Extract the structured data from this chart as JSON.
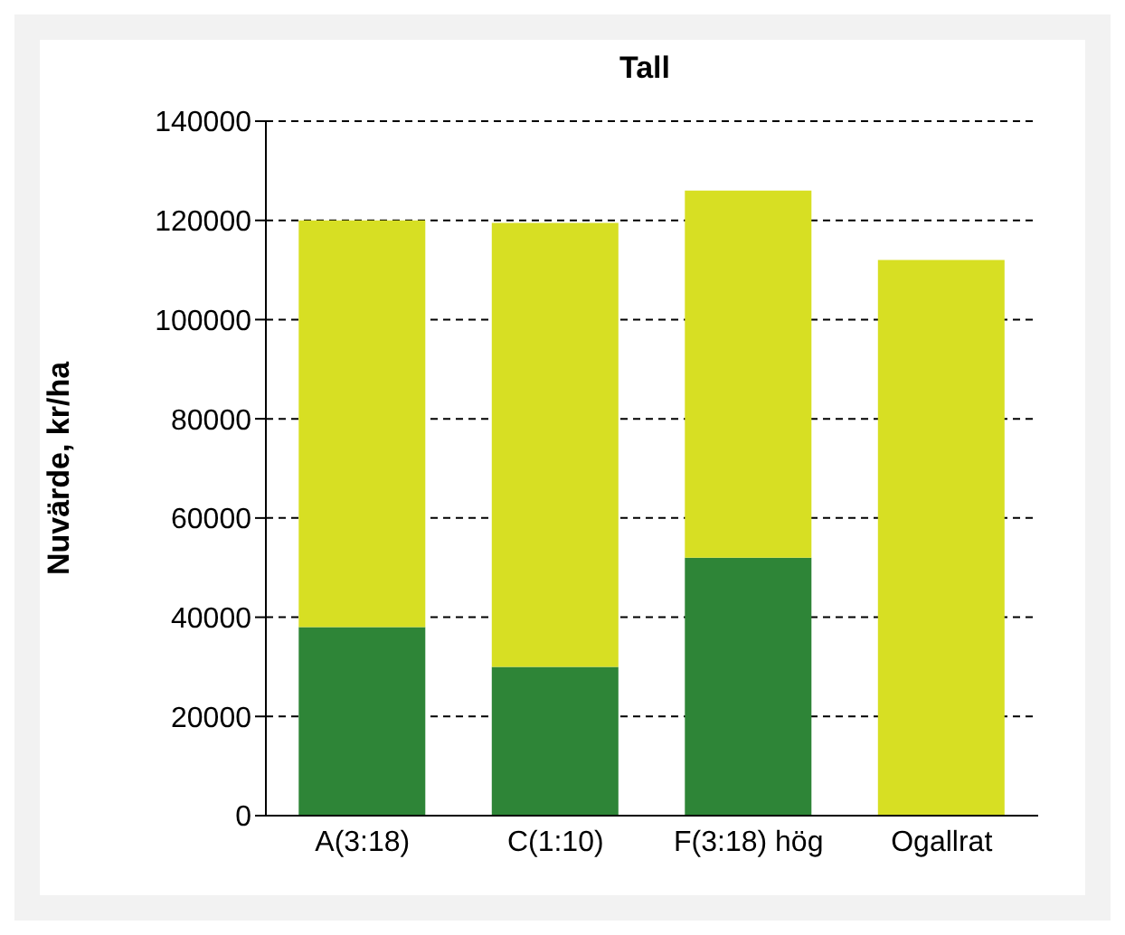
{
  "chart_data": {
    "type": "bar",
    "title": "Tall",
    "ylabel": "Nuvärde, kr/ha",
    "categories": [
      "A(3:18)",
      "C(1:10)",
      "F(3:18) hög",
      "Ogallrat"
    ],
    "stacked": true,
    "series": [
      {
        "color": "#2e8537",
        "values": [
          38000,
          30000,
          52000,
          null
        ]
      },
      {
        "color": "#d7df23",
        "values": [
          82000,
          89500,
          74000,
          112000
        ]
      }
    ],
    "ylim": [
      0,
      140000
    ],
    "yticks": [
      0,
      20000,
      40000,
      60000,
      80000,
      100000,
      120000,
      140000
    ],
    "grid": "y",
    "legend": false
  }
}
